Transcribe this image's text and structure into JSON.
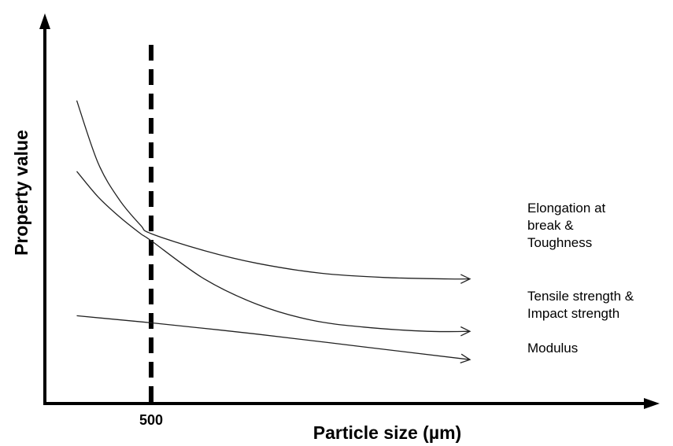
{
  "chart_data": {
    "type": "line",
    "title": "",
    "xlabel": "Particle size (µm)",
    "ylabel": "Property value",
    "grid": false,
    "xlim": [
      0,
      2750
    ],
    "ylim": [
      0,
      10
    ],
    "x_ticks": [
      {
        "value": 500,
        "label": "500"
      }
    ],
    "reference_lines": [
      {
        "axis": "x",
        "value": 500,
        "style": "dashed"
      }
    ],
    "series": [
      {
        "name": "Elongation at break & Toughness",
        "label_lines": [
          "Elongation at",
          "break &",
          "Toughness"
        ],
        "arrow_end": true,
        "points": [
          [
            150,
            10.7
          ],
          [
            250,
            8.5
          ],
          [
            350,
            7.2
          ],
          [
            450,
            6.3
          ],
          [
            500,
            6.0
          ],
          [
            750,
            5.4
          ],
          [
            1000,
            4.95
          ],
          [
            1300,
            4.6
          ],
          [
            1600,
            4.45
          ],
          [
            1900,
            4.4
          ],
          [
            2000,
            4.4
          ]
        ]
      },
      {
        "name": "Tensile strength & Impact strength",
        "label_lines": [
          "Tensile strength &",
          "Impact strength"
        ],
        "arrow_end": true,
        "points": [
          [
            150,
            8.2
          ],
          [
            250,
            7.3
          ],
          [
            350,
            6.6
          ],
          [
            450,
            6.0
          ],
          [
            500,
            5.75
          ],
          [
            750,
            4.4
          ],
          [
            1000,
            3.5
          ],
          [
            1250,
            2.95
          ],
          [
            1500,
            2.7
          ],
          [
            1800,
            2.55
          ],
          [
            2000,
            2.55
          ]
        ]
      },
      {
        "name": "Modulus",
        "label_lines": [
          "Modulus"
        ],
        "arrow_end": true,
        "points": [
          [
            150,
            3.1
          ],
          [
            500,
            2.85
          ],
          [
            1000,
            2.45
          ],
          [
            1500,
            2.0
          ],
          [
            2000,
            1.55
          ]
        ]
      }
    ]
  }
}
